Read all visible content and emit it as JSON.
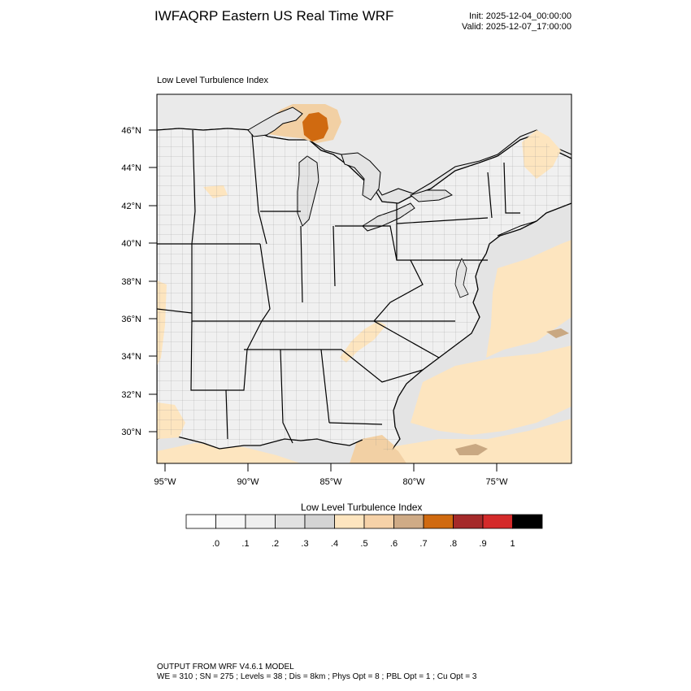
{
  "header": {
    "title": "IWFAQRP Eastern US Real Time WRF",
    "init": "Init: 2025-12-04_00:00:00",
    "valid": "Valid: 2025-12-07_17:00:00"
  },
  "map": {
    "field_label": "Low Level Turbulence Index",
    "lat_labels": [
      "46°N",
      "44°N",
      "42°N",
      "40°N",
      "38°N",
      "36°N",
      "34°N",
      "32°N",
      "30°N"
    ],
    "lon_labels": [
      "95°W",
      "90°W",
      "85°W",
      "80°W",
      "75°W"
    ],
    "colors": {
      "ocean_gray": "#e4e4e4",
      "land_light": "#f0f0f0",
      "tan_light": "#fde5bf",
      "tan_mid": "#f2d0a4",
      "tan_dark": "#c9a882",
      "orange": "#d06a10"
    }
  },
  "colorbar": {
    "title": "Low Level Turbulence Index",
    "colors": [
      "#ffffff",
      "#f7f7f7",
      "#efefef",
      "#e1e1e1",
      "#d4d4d4",
      "#fde5bf",
      "#f6d2a8",
      "#cfab86",
      "#d06a10",
      "#a52a2a",
      "#d42a2a",
      "#000000"
    ],
    "ticks": [
      ".0",
      ".1",
      ".2",
      ".3",
      ".4",
      ".5",
      ".6",
      ".7",
      ".8",
      ".9",
      "1"
    ]
  },
  "footer": {
    "line1": "OUTPUT FROM WRF V4.6.1 MODEL",
    "line2": "WE = 310 ; SN = 275 ; Levels = 38 ; Dis = 8km ; Phys Opt = 8 ; PBL Opt = 1 ; Cu Opt = 3"
  }
}
